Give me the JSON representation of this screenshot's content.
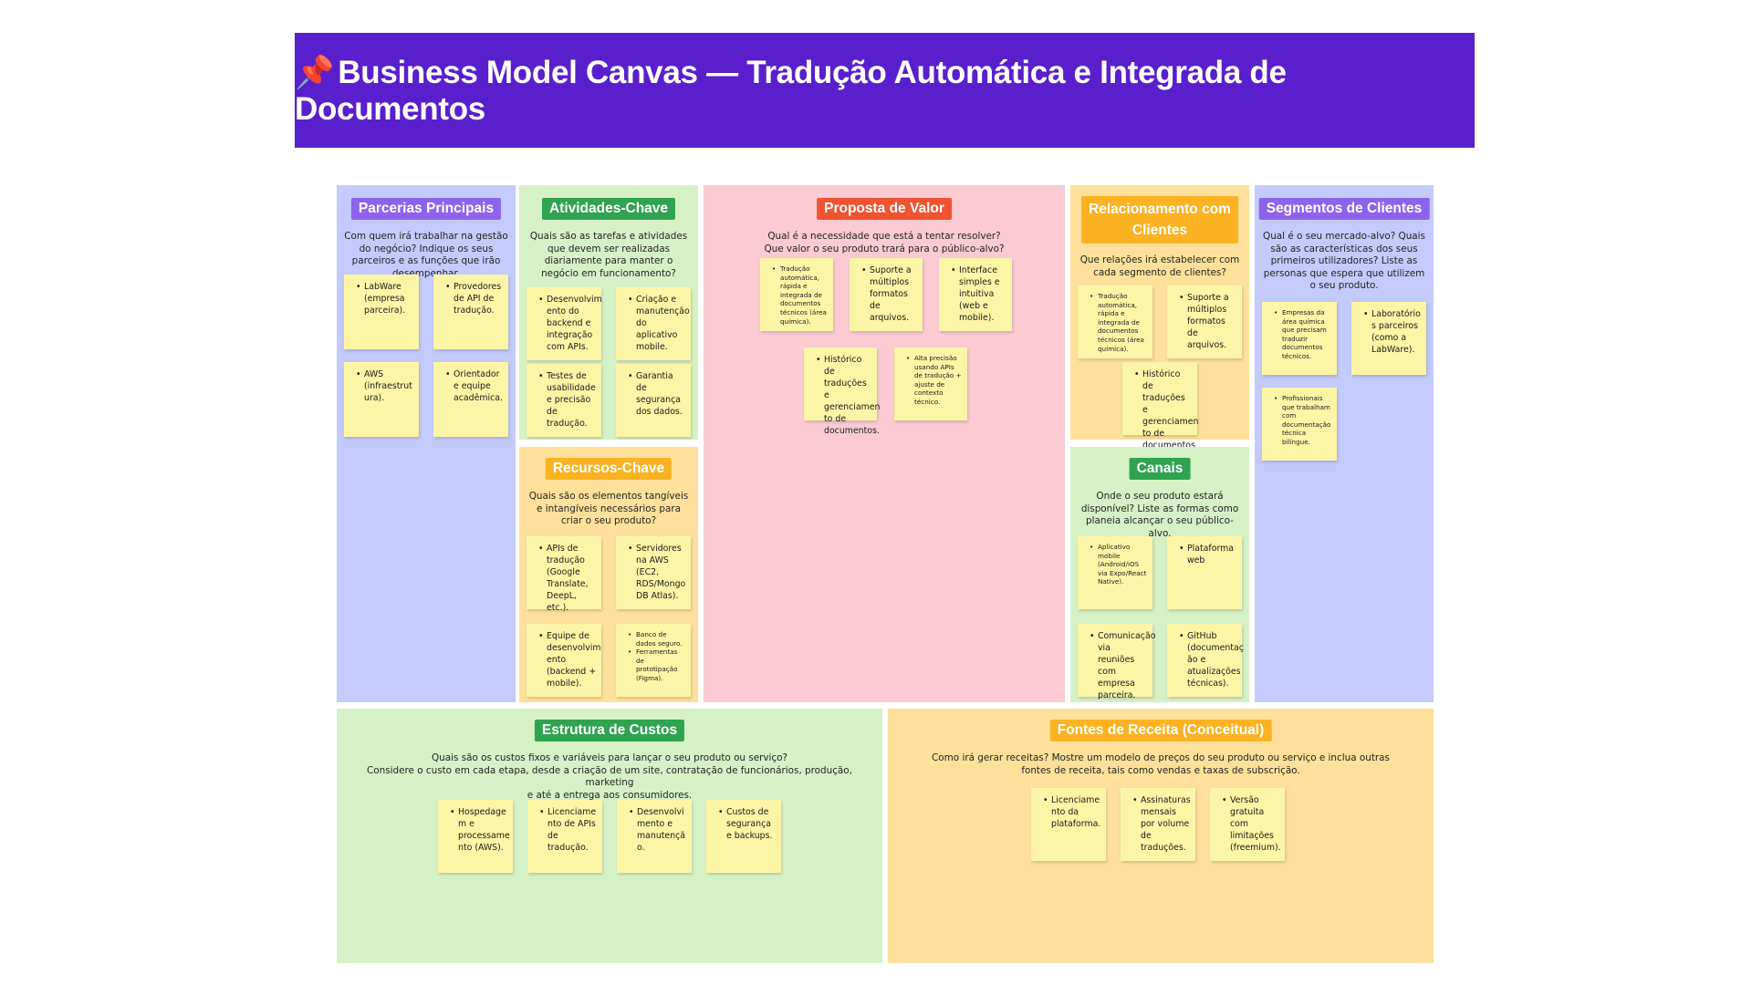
{
  "title": {
    "icon": "pushpin-icon",
    "pin_glyph": "📌",
    "text": "Business Model Canvas — Tradução Automática e Integrada de Documentos"
  },
  "colors": {
    "banner": "#5a1fcc",
    "purple_bg": "#c4cbfc",
    "purple_tag": "#8d63ee",
    "green_bg": "#d7f1c6",
    "green_tag": "#2fa34e",
    "pink_bg": "#fccad3",
    "red_tag": "#ef5331",
    "orange_bg": "#ffe09a",
    "orange_tag": "#fbb223",
    "note": "#fdf5a6"
  },
  "sections": {
    "parcerias": {
      "title": "Parcerias Principais",
      "question": "Com quem irá trabalhar na gestão do negócio? Indique os seus parceiros e as funções que irão desempenhar.",
      "notes": [
        "LabWare (empresa parceira).",
        "Provedores de API de tradução.",
        "AWS (infraestrut ura).",
        "Orientador e equipe acadêmica."
      ]
    },
    "atividades": {
      "title": "Atividades-Chave",
      "question": "Quais são as tarefas e atividades que devem ser realizadas diariamente para manter o negócio em funcionamento?",
      "notes": [
        "Desenvolvim ento do backend e integração com APIs.",
        "Criação e manutenção do aplicativo mobile.",
        "Testes de usabilidade e precisão de tradução.",
        "Garantia de segurança dos dados."
      ]
    },
    "recursos": {
      "title": "Recursos-Chave",
      "question": "Quais são os elementos tangíveis e intangíveis necessários para criar o seu produto?",
      "notes": [
        "APIs de tradução (Google Translate, DeepL, etc.).",
        "Servidores na AWS (EC2, RDS/Mongo DB Atlas).",
        "Equipe de desenvolvim ento (backend + mobile).",
        "Banco de dados seguro.",
        "Ferramentas de prototipação (Figma)."
      ]
    },
    "proposta": {
      "title": "Proposta de Valor",
      "question_1": "Qual é a necessidade que está a tentar resolver?",
      "question_2": "Que valor o seu produto trará para o público-alvo?",
      "notes": [
        "Tradução automática, rápida e integrada de documentos técnicos (área química).",
        "Suporte a múltiplos formatos de arquivos.",
        "Interface simples e intuitiva (web e mobile).",
        "Histórico de traduções e gerenciamen to de documentos.",
        "Alta precisão usando APIs de tradução + ajuste de contexto técnico."
      ]
    },
    "relacionamento": {
      "title_1": "Relacionamento com",
      "title_2": "Clientes",
      "question": "Que relações irá estabelecer com cada segmento de clientes?",
      "notes": [
        "Tradução automática, rápida e integrada de documentos técnicos (área química).",
        "Suporte a múltiplos formatos de arquivos.",
        "Histórico de traduções e gerenciamen to de documentos."
      ]
    },
    "canais": {
      "title": "Canais",
      "question": "Onde o seu produto estará disponível? Liste as formas como planeia alcançar o seu público-alvo.",
      "notes": [
        "Aplicativo mobile (Android/iOS via Expo/React Native).",
        "Plataforma web",
        "Comunicação via reuniões com empresa parceira.",
        "GitHub (documentaç ão e atualizações técnicas)."
      ]
    },
    "segmentos": {
      "title": "Segmentos de Clientes",
      "question": "Qual é o seu mercado-alvo? Quais são as características dos seus primeiros utilizadores? Liste as personas que espera que utilizem o seu produto.",
      "notes": [
        "Empresas da área química que precisam traduzir documentos técnicos.",
        "Laboratório s parceiros (como a LabWare).",
        "Profissionais que trabalham com documentação técnica bilíngue."
      ]
    },
    "custos": {
      "title": "Estrutura de Custos",
      "question_1": "Quais são os custos fixos e variáveis para lançar o seu produto ou serviço?",
      "question_2": "Considere o custo em cada etapa, desde a criação de um site, contratação de funcionários, produção, marketing",
      "question_3": "e até a entrega aos consumidores.",
      "notes": [
        "Hospedage m e processame nto (AWS).",
        "Licenciame nto de APIs de tradução.",
        "Desenvolvi mento e manutençã o.",
        "Custos de segurança e backups."
      ]
    },
    "receita": {
      "title": "Fontes de Receita (Conceitual)",
      "question_1": "Como irá gerar receitas? Mostre um modelo de preços do seu produto ou serviço e inclua outras",
      "question_2": "fontes de receita, tais como vendas e taxas de subscrição.",
      "notes": [
        "Licenciame nto da plataforma.",
        "Assinaturas mensais por volume de traduções.",
        "Versão gratuita com limitações (freemium)."
      ]
    }
  }
}
